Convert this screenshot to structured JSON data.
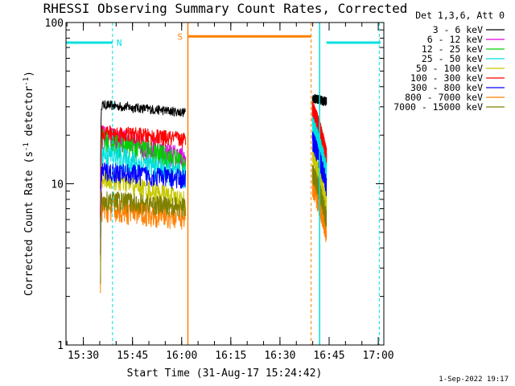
{
  "chart_data": {
    "type": "line",
    "title": "RHESSI Observing Summary Count Rates, Corrected",
    "xlabel": "Start Time (31-Aug-17 15:24:42)",
    "ylabel": {
      "prefix": "Corrected Count Rate (s",
      "sup1": "-1",
      "middle": " detector",
      "sup2": "-1",
      "suffix": ")"
    },
    "footer": "1-Sep-2022 19:17",
    "x_unit": "minutes after 15:24:42",
    "xlim": [
      0,
      97
    ],
    "ylim": [
      1,
      100
    ],
    "yscale": "log",
    "x_ticks": [
      {
        "label": "15:30",
        "x": 5.3
      },
      {
        "label": "15:45",
        "x": 20.3
      },
      {
        "label": "16:00",
        "x": 35.3
      },
      {
        "label": "16:15",
        "x": 50.3
      },
      {
        "label": "16:30",
        "x": 65.3
      },
      {
        "label": "16:45",
        "x": 80.3
      },
      {
        "label": "17:00",
        "x": 95.3
      }
    ],
    "y_ticks": [
      {
        "label": "1",
        "y": 1
      },
      {
        "label": "10",
        "y": 10
      },
      {
        "label": "100",
        "y": 100
      }
    ],
    "legend_header": "Det 1,3,6, Att 0",
    "series": [
      {
        "name": "3 - 6 keV",
        "color": "#000000",
        "level1": 31,
        "level2": 34,
        "spread": 0.07
      },
      {
        "name": "6 - 12 keV",
        "color": "#e000e0",
        "level1": 20,
        "level2": 26,
        "spread": 0.18
      },
      {
        "name": "12 - 25 keV",
        "color": "#00d000",
        "level1": 19,
        "level2": 28,
        "spread": 0.18
      },
      {
        "name": "25 - 50 keV",
        "color": "#00e0e0",
        "level1": 15.5,
        "level2": 24,
        "spread": 0.18
      },
      {
        "name": "50 - 100 keV",
        "color": "#c8c800",
        "level1": 11,
        "level2": 15,
        "spread": 0.15
      },
      {
        "name": "100 - 300 keV",
        "color": "#ff0000",
        "level1": 21,
        "level2": 30,
        "spread": 0.12
      },
      {
        "name": "300 - 800 keV",
        "color": "#0000ff",
        "level1": 12,
        "level2": 19,
        "spread": 0.15
      },
      {
        "name": "800 - 7000 keV",
        "color": "#ff8000",
        "level1": 7,
        "level2": 10,
        "spread": 0.18
      },
      {
        "name": "7000 - 15000 keV",
        "color": "#808000",
        "level1": 8,
        "level2": 12,
        "spread": 0.15
      }
    ],
    "segments": [
      {
        "x_start": 10.5,
        "x_end": 36.5
      },
      {
        "x_start": 75.2,
        "x_end": 79.5
      }
    ],
    "markers": [
      {
        "label": "N",
        "color": "#00e0e0",
        "y": 75,
        "bars": [
          {
            "x1": 0,
            "x2": 14.2
          },
          {
            "x1": 79.5,
            "x2": 96
          }
        ],
        "dashed_x": [
          14.2,
          95.6
        ],
        "solid_x": [
          77.4
        ]
      },
      {
        "label": "S",
        "color": "#ff8000",
        "y": 82,
        "bars": [
          {
            "x1": 37.2,
            "x2": 74.8
          }
        ],
        "dashed_x": [
          74.8
        ],
        "solid_x": [
          37.2
        ]
      }
    ]
  }
}
